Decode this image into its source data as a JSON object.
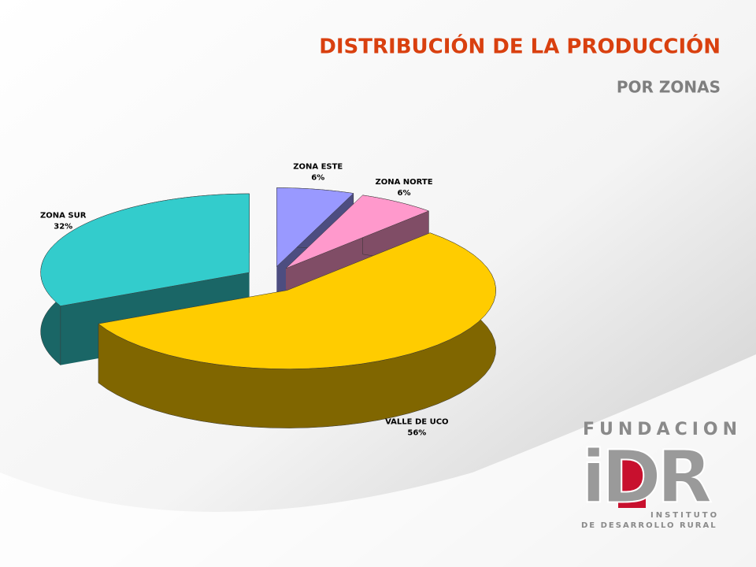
{
  "chart_data": {
    "type": "pie",
    "title": "DISTRIBUCIÓN DE LA PRODUCCIÓN",
    "subtitle": "POR ZONAS",
    "categories": [
      "ZONA ESTE",
      "ZONA NORTE",
      "VALLE DE UCO",
      "ZONA SUR"
    ],
    "values": [
      6,
      6,
      56,
      32
    ],
    "value_labels": [
      "6%",
      "6%",
      "56%",
      "32%"
    ],
    "colors": [
      "#9999ff",
      "#ff99cc",
      "#ffcc00",
      "#33cccc"
    ]
  },
  "logo": {
    "top": "FUNDACION",
    "letters": "iDR",
    "line1": "INSTITUTO",
    "line2": "DE DESARROLLO RURAL"
  }
}
